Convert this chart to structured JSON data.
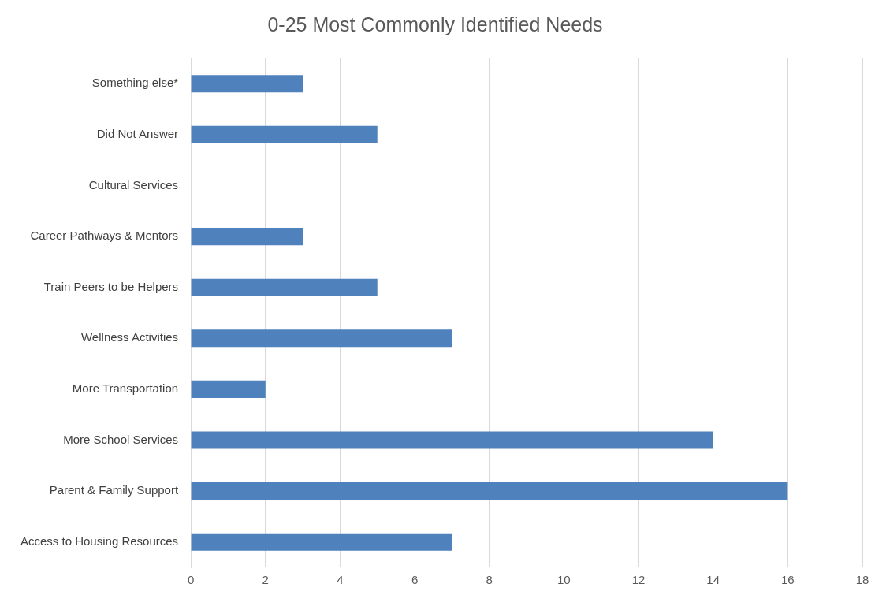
{
  "chart_data": {
    "type": "bar",
    "orientation": "horizontal",
    "title": "0-25 Most Commonly Identified Needs",
    "categories": [
      "Something else*",
      "Did Not Answer",
      "Cultural Services",
      "Career Pathways & Mentors",
      "Train Peers to be Helpers",
      "Wellness Activities",
      "More Transportation",
      "More School Services",
      "Parent & Family Support",
      "Access to Housing Resources"
    ],
    "values": [
      3,
      5,
      0,
      3,
      5,
      7,
      2,
      14,
      16,
      7
    ],
    "color": "#4f81bd",
    "xlim": [
      0,
      18
    ],
    "xticks": [
      0,
      2,
      4,
      6,
      8,
      10,
      12,
      14,
      16,
      18
    ],
    "grid": "x",
    "legend": false
  }
}
